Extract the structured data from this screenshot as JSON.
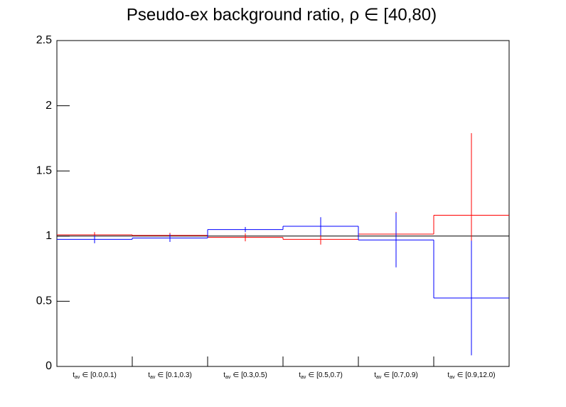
{
  "chart_data": {
    "type": "step",
    "title": "Pseudo-ex background ratio,   ρ ∈ [40,80)",
    "category_variable": "t",
    "category_subscript": "av",
    "category_symbol": "∈",
    "categories": [
      "[0.0,0.1)",
      "[0.1,0.3)",
      "[0.3,0.5)",
      "[0.5,0.7)",
      "[0.7,0.9)",
      "[0.9,12.0)"
    ],
    "series": [
      {
        "color": "#ff0000",
        "values": [
          1.01,
          1.005,
          0.99,
          0.975,
          1.015,
          1.16
        ],
        "errors": [
          0.02,
          0.02,
          0.03,
          0.04,
          0.17,
          0.63
        ]
      },
      {
        "color": "#0000ff",
        "values": [
          0.975,
          0.985,
          1.05,
          1.075,
          0.97,
          0.525
        ],
        "errors": [
          0.03,
          0.03,
          0.02,
          0.07,
          0.21,
          0.44
        ]
      }
    ],
    "reference_line": 1,
    "ylim": [
      0,
      2.5
    ],
    "yticks": [
      0,
      0.5,
      1,
      1.5,
      2,
      2.5
    ]
  }
}
